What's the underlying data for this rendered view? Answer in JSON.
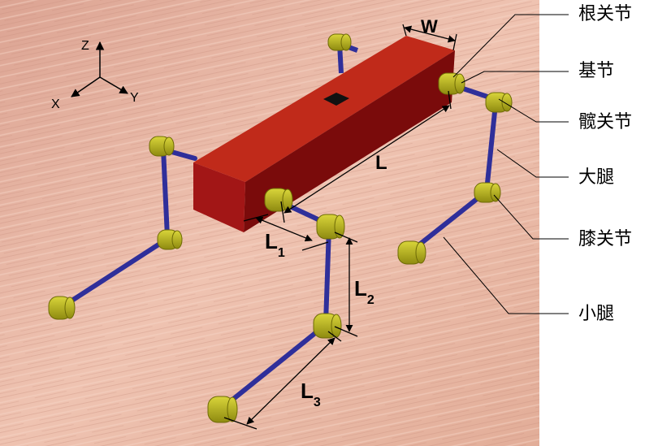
{
  "axes": {
    "z": "Z",
    "x": "X",
    "y": "Y"
  },
  "dimensions": {
    "width": "W",
    "length": "L",
    "l1": {
      "base": "L",
      "sub": "1"
    },
    "l2": {
      "base": "L",
      "sub": "2"
    },
    "l3": {
      "base": "L",
      "sub": "3"
    }
  },
  "callouts": {
    "root_joint": "根关节",
    "base": "基节",
    "hip_joint": "髋关节",
    "thigh": "大腿",
    "knee_joint": "膝关节",
    "shank": "小腿"
  },
  "colors": {
    "body": "#8a1010",
    "link": "#2f2f9a",
    "joint": "#b8b418",
    "floor": "#e9b8a4"
  }
}
